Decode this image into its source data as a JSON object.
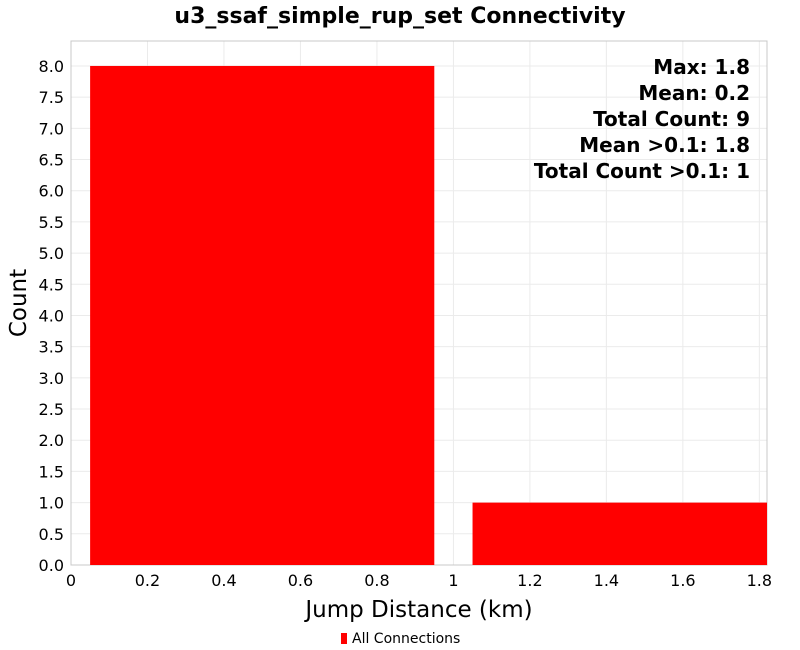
{
  "chart_data": {
    "type": "bar",
    "title": "u3_ssaf_simple_rup_set Connectivity",
    "xlabel": "Jump Distance (km)",
    "ylabel": "Count",
    "xlim": [
      0,
      1.82
    ],
    "ylim": [
      0,
      8.4
    ],
    "x_ticks": [
      "0",
      "0.2",
      "0.4",
      "0.6",
      "0.8",
      "1",
      "1.2",
      "1.4",
      "1.6",
      "1.8"
    ],
    "y_ticks": [
      "0.0",
      "0.5",
      "1.0",
      "1.5",
      "2.0",
      "2.5",
      "3.0",
      "3.5",
      "4.0",
      "4.5",
      "5.0",
      "5.5",
      "6.0",
      "6.5",
      "7.0",
      "7.5",
      "8.0"
    ],
    "grid": true,
    "legend_position": "bottom-center",
    "series": [
      {
        "name": "All Connections",
        "color": "#ff0000",
        "bins": [
          {
            "x_start": 0.05,
            "x_end": 0.95,
            "value": 8
          },
          {
            "x_start": 1.05,
            "x_end": 1.82,
            "value": 1
          }
        ]
      }
    ],
    "annotations": [
      "Max: 1.8",
      "Mean: 0.2",
      "Total Count: 9",
      "Mean >0.1: 1.8",
      "Total Count >0.1: 1"
    ]
  }
}
